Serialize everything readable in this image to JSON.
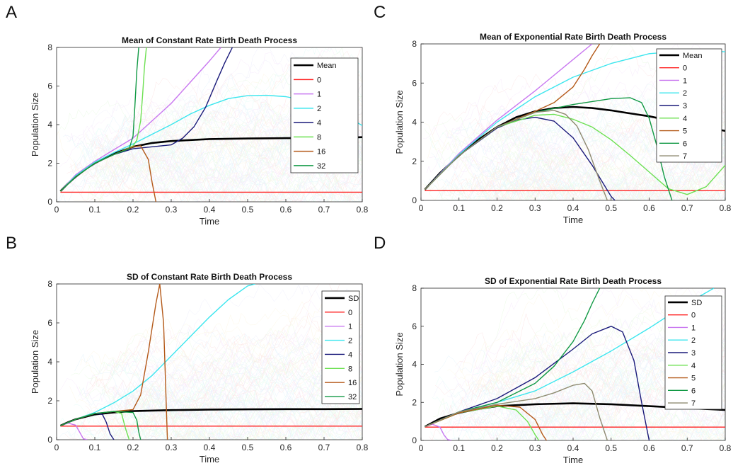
{
  "panel_letters": [
    "A",
    "C",
    "B",
    "D"
  ],
  "chart_data": [
    {
      "type": "line",
      "title": "Mean of Constant Rate Birth Death Process",
      "xlabel": "Time",
      "ylabel": "Population Size",
      "xlim": [
        0,
        0.8
      ],
      "ylim": [
        0,
        8
      ],
      "xticks": [
        "0",
        "0.1",
        "0.2",
        "0.3",
        "0.4",
        "0.5",
        "0.6",
        "0.7",
        "0.8"
      ],
      "yticks": [
        "0",
        "2",
        "4",
        "6",
        "8"
      ],
      "legend_position": "top-right",
      "series": [
        {
          "name": "Mean",
          "color": "#000000",
          "x": [
            0.01,
            0.03,
            0.05,
            0.08,
            0.1,
            0.13,
            0.15,
            0.18,
            0.2,
            0.25,
            0.3,
            0.35,
            0.4,
            0.5,
            0.6,
            0.7,
            0.8
          ],
          "y": [
            0.55,
            0.95,
            1.3,
            1.75,
            2.0,
            2.3,
            2.5,
            2.7,
            2.85,
            3.05,
            3.15,
            3.2,
            3.25,
            3.28,
            3.3,
            3.3,
            3.35
          ]
        },
        {
          "name": "0",
          "color": "#ff2020",
          "x": [
            0.01,
            0.8
          ],
          "y": [
            0.5,
            0.5
          ]
        },
        {
          "name": "1",
          "color": "#c978f0",
          "x": [
            0.01,
            0.05,
            0.1,
            0.15,
            0.2,
            0.25,
            0.3,
            0.35,
            0.4,
            0.43
          ],
          "y": [
            0.55,
            1.4,
            2.1,
            2.7,
            3.3,
            4.2,
            5.1,
            6.2,
            7.3,
            8.0
          ]
        },
        {
          "name": "2",
          "color": "#3ce6ee",
          "x": [
            0.01,
            0.05,
            0.1,
            0.15,
            0.2,
            0.25,
            0.3,
            0.35,
            0.4,
            0.45,
            0.5,
            0.55,
            0.6,
            0.65,
            0.7,
            0.75,
            0.8
          ],
          "y": [
            0.55,
            1.35,
            2.05,
            2.55,
            3.0,
            3.5,
            4.0,
            4.55,
            5.0,
            5.35,
            5.5,
            5.52,
            5.45,
            5.25,
            5.0,
            4.55,
            3.95
          ]
        },
        {
          "name": "4",
          "color": "#1a1a7a",
          "x": [
            0.01,
            0.05,
            0.1,
            0.15,
            0.2,
            0.25,
            0.3,
            0.33,
            0.36,
            0.39,
            0.42,
            0.44,
            0.46
          ],
          "y": [
            0.55,
            1.3,
            2.0,
            2.45,
            2.75,
            2.85,
            2.95,
            3.3,
            3.9,
            4.9,
            6.3,
            7.2,
            8.0
          ]
        },
        {
          "name": "8",
          "color": "#6de052",
          "x": [
            0.01,
            0.05,
            0.1,
            0.15,
            0.18,
            0.2,
            0.21,
            0.22,
            0.225,
            0.23,
            0.235
          ],
          "y": [
            0.55,
            1.3,
            2.0,
            2.45,
            2.7,
            2.9,
            3.2,
            4.2,
            5.5,
            7.0,
            8.0
          ]
        },
        {
          "name": "16",
          "color": "#b45a1a",
          "x": [
            0.01,
            0.05,
            0.1,
            0.15,
            0.2,
            0.22,
            0.24,
            0.25,
            0.26
          ],
          "y": [
            0.55,
            1.3,
            2.0,
            2.45,
            2.85,
            2.9,
            2.2,
            1.0,
            0.0
          ]
        },
        {
          "name": "32",
          "color": "#119944",
          "x": [
            0.01,
            0.05,
            0.1,
            0.15,
            0.19,
            0.2,
            0.205,
            0.21,
            0.215
          ],
          "y": [
            0.55,
            1.3,
            2.0,
            2.45,
            2.75,
            3.4,
            5.0,
            6.8,
            8.0
          ]
        }
      ]
    },
    {
      "type": "line",
      "title": "Mean of Exponential Rate Birth Death Process",
      "xlabel": "Time",
      "ylabel": "Population Size",
      "xlim": [
        0,
        0.8
      ],
      "ylim": [
        0,
        8
      ],
      "xticks": [
        "0",
        "0.1",
        "0.2",
        "0.3",
        "0.4",
        "0.5",
        "0.6",
        "0.7",
        "0.8"
      ],
      "yticks": [
        "0",
        "2",
        "4",
        "6",
        "8"
      ],
      "legend_position": "top-right",
      "series": [
        {
          "name": "Mean",
          "color": "#000000",
          "x": [
            0.01,
            0.05,
            0.1,
            0.15,
            0.2,
            0.25,
            0.3,
            0.35,
            0.4,
            0.45,
            0.5,
            0.55,
            0.6,
            0.65,
            0.7,
            0.75,
            0.8
          ],
          "y": [
            0.55,
            1.4,
            2.3,
            3.1,
            3.75,
            4.25,
            4.55,
            4.72,
            4.78,
            4.72,
            4.6,
            4.45,
            4.3,
            4.1,
            3.95,
            3.75,
            3.55
          ]
        },
        {
          "name": "0",
          "color": "#ff2020",
          "x": [
            0.01,
            0.8
          ],
          "y": [
            0.5,
            0.5
          ]
        },
        {
          "name": "1",
          "color": "#c978f0",
          "x": [
            0.01,
            0.1,
            0.2,
            0.3,
            0.4,
            0.45
          ],
          "y": [
            0.55,
            2.4,
            4.1,
            5.6,
            7.2,
            8.0
          ]
        },
        {
          "name": "2",
          "color": "#3ce6ee",
          "x": [
            0.01,
            0.1,
            0.2,
            0.3,
            0.4,
            0.5,
            0.6,
            0.7,
            0.8
          ],
          "y": [
            0.55,
            2.35,
            4.0,
            5.3,
            6.3,
            7.0,
            7.5,
            7.65,
            7.6
          ]
        },
        {
          "name": "3",
          "color": "#1a1a7a",
          "x": [
            0.01,
            0.1,
            0.2,
            0.25,
            0.3,
            0.35,
            0.4,
            0.45,
            0.5,
            0.51
          ],
          "y": [
            0.55,
            2.3,
            3.7,
            4.1,
            4.25,
            4.05,
            3.2,
            1.8,
            0.2,
            0.0
          ]
        },
        {
          "name": "4",
          "color": "#6de052",
          "x": [
            0.01,
            0.1,
            0.2,
            0.3,
            0.35,
            0.4,
            0.45,
            0.5,
            0.55,
            0.6,
            0.65,
            0.7,
            0.75,
            0.8
          ],
          "y": [
            0.55,
            2.3,
            3.75,
            4.35,
            4.4,
            4.15,
            3.75,
            3.1,
            2.3,
            1.45,
            0.6,
            0.3,
            0.7,
            1.8
          ]
        },
        {
          "name": "5",
          "color": "#b45a1a",
          "x": [
            0.01,
            0.1,
            0.2,
            0.3,
            0.35,
            0.4,
            0.43,
            0.45,
            0.47
          ],
          "y": [
            0.55,
            2.3,
            3.75,
            4.55,
            5.0,
            5.8,
            6.7,
            7.4,
            8.0
          ]
        },
        {
          "name": "6",
          "color": "#119944",
          "x": [
            0.01,
            0.1,
            0.2,
            0.3,
            0.4,
            0.5,
            0.55,
            0.58,
            0.6,
            0.62,
            0.64,
            0.66
          ],
          "y": [
            0.55,
            2.3,
            3.75,
            4.5,
            4.9,
            5.2,
            5.25,
            5.0,
            4.2,
            2.8,
            1.2,
            0.0
          ]
        },
        {
          "name": "7",
          "color": "#8e8a70",
          "x": [
            0.01,
            0.1,
            0.2,
            0.3,
            0.35,
            0.38,
            0.41,
            0.44,
            0.47,
            0.49
          ],
          "y": [
            0.55,
            2.3,
            3.75,
            4.5,
            4.6,
            4.4,
            3.8,
            2.6,
            1.0,
            0.0
          ]
        }
      ]
    },
    {
      "type": "line",
      "title": "SD of Constant Rate Birth Death Process",
      "xlabel": "Time",
      "ylabel": "Population Size",
      "xlim": [
        0,
        0.8
      ],
      "ylim": [
        0,
        8
      ],
      "xticks": [
        "0",
        "0.1",
        "0.2",
        "0.3",
        "0.4",
        "0.5",
        "0.6",
        "0.7",
        "0.8"
      ],
      "yticks": [
        "0",
        "2",
        "4",
        "6",
        "8"
      ],
      "legend_position": "top-right",
      "series": [
        {
          "name": "SD",
          "color": "#000000",
          "x": [
            0.01,
            0.03,
            0.05,
            0.08,
            0.1,
            0.15,
            0.2,
            0.3,
            0.4,
            0.5,
            0.6,
            0.7,
            0.8
          ],
          "y": [
            0.72,
            0.9,
            1.05,
            1.2,
            1.3,
            1.4,
            1.47,
            1.52,
            1.55,
            1.56,
            1.57,
            1.57,
            1.58
          ]
        },
        {
          "name": "0",
          "color": "#ff2020",
          "x": [
            0.01,
            0.8
          ],
          "y": [
            0.7,
            0.7
          ]
        },
        {
          "name": "1",
          "color": "#c978f0",
          "x": [
            0.01,
            0.03,
            0.05,
            0.06,
            0.07,
            0.08
          ],
          "y": [
            0.72,
            0.85,
            0.75,
            0.4,
            0.05,
            0.0
          ]
        },
        {
          "name": "2",
          "color": "#3ce6ee",
          "x": [
            0.01,
            0.05,
            0.1,
            0.15,
            0.2,
            0.25,
            0.3,
            0.35,
            0.4,
            0.45,
            0.5,
            0.52
          ],
          "y": [
            0.72,
            1.05,
            1.4,
            1.9,
            2.5,
            3.3,
            4.3,
            5.3,
            6.3,
            7.2,
            7.9,
            8.0
          ]
        },
        {
          "name": "4",
          "color": "#1a1a7a",
          "x": [
            0.01,
            0.05,
            0.1,
            0.12,
            0.13,
            0.14,
            0.15
          ],
          "y": [
            0.72,
            1.05,
            1.35,
            1.3,
            0.9,
            0.3,
            0.0
          ]
        },
        {
          "name": "8",
          "color": "#6de052",
          "x": [
            0.01,
            0.05,
            0.1,
            0.15,
            0.17,
            0.18,
            0.19
          ],
          "y": [
            0.72,
            1.05,
            1.35,
            1.45,
            1.35,
            0.6,
            0.0
          ]
        },
        {
          "name": "16",
          "color": "#b45a1a",
          "x": [
            0.01,
            0.05,
            0.1,
            0.15,
            0.2,
            0.22,
            0.24,
            0.26,
            0.27,
            0.28,
            0.285,
            0.29
          ],
          "y": [
            0.72,
            1.05,
            1.35,
            1.45,
            1.55,
            2.3,
            4.5,
            7.0,
            8.0,
            6.0,
            3.0,
            0.0
          ]
        },
        {
          "name": "32",
          "color": "#119944",
          "x": [
            0.01,
            0.05,
            0.1,
            0.15,
            0.2,
            0.21,
            0.215,
            0.22
          ],
          "y": [
            0.72,
            1.05,
            1.35,
            1.45,
            1.4,
            1.0,
            0.4,
            0.0
          ]
        }
      ]
    },
    {
      "type": "line",
      "title": "SD of Exponential Rate Birth Death Process",
      "xlabel": "Time",
      "ylabel": "Population Size",
      "xlim": [
        0,
        0.8
      ],
      "ylim": [
        0,
        8
      ],
      "xticks": [
        "0",
        "0.1",
        "0.2",
        "0.3",
        "0.4",
        "0.5",
        "0.6",
        "0.7",
        "0.8"
      ],
      "yticks": [
        "0",
        "2",
        "4",
        "6",
        "8"
      ],
      "legend_position": "top-right",
      "series": [
        {
          "name": "SD",
          "color": "#000000",
          "x": [
            0.01,
            0.05,
            0.1,
            0.15,
            0.2,
            0.3,
            0.4,
            0.5,
            0.6,
            0.7,
            0.8
          ],
          "y": [
            0.72,
            1.15,
            1.45,
            1.65,
            1.8,
            1.9,
            1.95,
            1.9,
            1.8,
            1.7,
            1.6
          ]
        },
        {
          "name": "0",
          "color": "#ff2020",
          "x": [
            0.01,
            0.8
          ],
          "y": [
            0.7,
            0.7
          ]
        },
        {
          "name": "1",
          "color": "#c978f0",
          "x": [
            0.01,
            0.03,
            0.05,
            0.06,
            0.07,
            0.08
          ],
          "y": [
            0.72,
            0.85,
            0.7,
            0.3,
            0.05,
            0.0
          ]
        },
        {
          "name": "2",
          "color": "#3ce6ee",
          "x": [
            0.01,
            0.1,
            0.2,
            0.3,
            0.4,
            0.5,
            0.6,
            0.7,
            0.77
          ],
          "y": [
            0.72,
            1.5,
            2.0,
            2.6,
            3.6,
            4.7,
            5.9,
            7.2,
            8.0
          ]
        },
        {
          "name": "3",
          "color": "#1a1a7a",
          "x": [
            0.01,
            0.1,
            0.2,
            0.3,
            0.4,
            0.45,
            0.5,
            0.53,
            0.56,
            0.58,
            0.6
          ],
          "y": [
            0.72,
            1.5,
            2.2,
            3.3,
            4.8,
            5.6,
            6.0,
            5.7,
            4.2,
            2.0,
            0.0
          ]
        },
        {
          "name": "4",
          "color": "#6de052",
          "x": [
            0.01,
            0.1,
            0.2,
            0.25,
            0.28,
            0.3,
            0.31
          ],
          "y": [
            0.72,
            1.45,
            1.8,
            1.6,
            1.0,
            0.3,
            0.0
          ]
        },
        {
          "name": "5",
          "color": "#b45a1a",
          "x": [
            0.01,
            0.1,
            0.2,
            0.26,
            0.3,
            0.32,
            0.33
          ],
          "y": [
            0.72,
            1.45,
            1.85,
            1.75,
            1.1,
            0.3,
            0.0
          ]
        },
        {
          "name": "6",
          "color": "#119944",
          "x": [
            0.01,
            0.1,
            0.2,
            0.3,
            0.35,
            0.4,
            0.43,
            0.45,
            0.47
          ],
          "y": [
            0.72,
            1.5,
            2.0,
            3.0,
            3.9,
            5.2,
            6.3,
            7.2,
            8.0
          ]
        },
        {
          "name": "7",
          "color": "#8e8a70",
          "x": [
            0.01,
            0.1,
            0.2,
            0.3,
            0.35,
            0.4,
            0.43,
            0.45,
            0.47,
            0.49
          ],
          "y": [
            0.72,
            1.5,
            1.9,
            2.2,
            2.5,
            2.9,
            3.0,
            2.6,
            1.2,
            0.0
          ]
        }
      ]
    }
  ]
}
